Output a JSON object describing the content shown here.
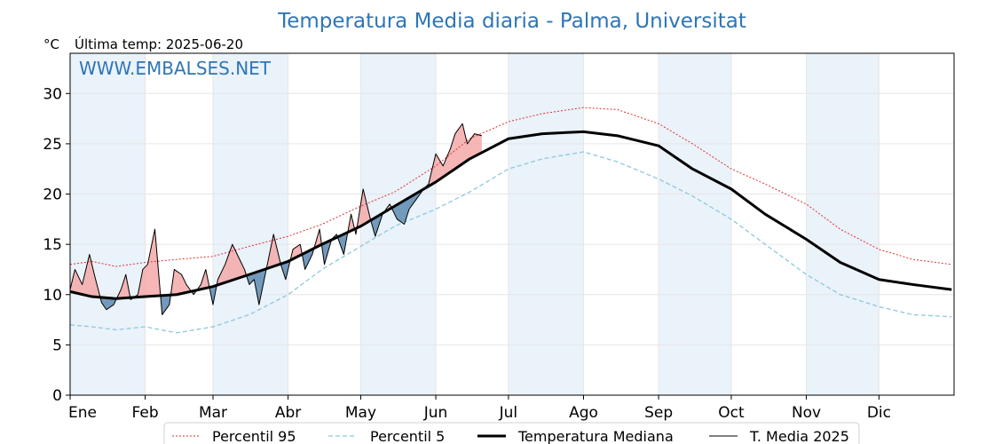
{
  "header": {
    "title": "Temperatura Media diaria - Palma, Universitat",
    "unit": "°C",
    "last_temp": "Última temp: 2025-06-20",
    "watermark": "WWW.EMBALSES.NET"
  },
  "colors": {
    "title": "#2e75b6",
    "p95": "#e03030",
    "p5": "#8ec8dc",
    "median": "#000000",
    "media2025": "#000000",
    "above_fill": "#f4a9a9",
    "below_fill": "#6c95b8",
    "band": "#eaf2fa"
  },
  "legend": [
    {
      "label": "Percentil 95",
      "style": "p95"
    },
    {
      "label": "Percentil 5",
      "style": "p5"
    },
    {
      "label": "Temperatura Mediana",
      "style": "median"
    },
    {
      "label": "T. Media 2025",
      "style": "media2025"
    }
  ],
  "chart_data": {
    "type": "line",
    "title": "Temperatura Media diaria - Palma, Universitat",
    "xlabel": "",
    "ylabel": "°C",
    "x_ticks": [
      "Ene",
      "Feb",
      "Mar",
      "Abr",
      "May",
      "Jun",
      "Jul",
      "Ago",
      "Sep",
      "Oct",
      "Nov",
      "Dic"
    ],
    "y_ticks": [
      0,
      5,
      10,
      15,
      20,
      25,
      30
    ],
    "ylim": [
      0,
      34
    ],
    "xlim": [
      1,
      366
    ],
    "grid": true,
    "legend_position": "bottom",
    "series": [
      {
        "name": "Percentil 95",
        "key": "p95",
        "x": [
          1,
          10,
          20,
          32,
          45,
          60,
          75,
          91,
          105,
          121,
          135,
          152,
          166,
          182,
          196,
          213,
          227,
          244,
          258,
          274,
          288,
          305,
          319,
          335,
          349,
          365
        ],
        "y": [
          13.0,
          13.3,
          12.8,
          13.2,
          13.5,
          13.8,
          14.8,
          15.8,
          17.0,
          18.8,
          20.2,
          22.8,
          25.5,
          27.2,
          28.0,
          28.6,
          28.4,
          27.0,
          25.0,
          22.5,
          21.0,
          19.0,
          16.5,
          14.5,
          13.5,
          13.0
        ]
      },
      {
        "name": "Percentil 5",
        "key": "p5",
        "x": [
          1,
          10,
          20,
          32,
          45,
          60,
          75,
          91,
          105,
          121,
          135,
          152,
          166,
          182,
          196,
          213,
          227,
          244,
          258,
          274,
          288,
          305,
          319,
          335,
          349,
          365
        ],
        "y": [
          7.0,
          6.8,
          6.5,
          6.8,
          6.2,
          6.8,
          8.0,
          10.0,
          12.5,
          14.8,
          16.8,
          18.5,
          20.2,
          22.5,
          23.5,
          24.2,
          23.2,
          21.5,
          19.8,
          17.5,
          15.0,
          12.0,
          10.0,
          8.8,
          8.0,
          7.8
        ]
      },
      {
        "name": "Temperatura Mediana",
        "key": "median",
        "x": [
          1,
          10,
          20,
          32,
          45,
          60,
          75,
          91,
          105,
          121,
          135,
          152,
          166,
          182,
          196,
          213,
          227,
          244,
          258,
          274,
          288,
          305,
          319,
          335,
          349,
          365
        ],
        "y": [
          10.3,
          9.8,
          9.6,
          9.8,
          10.0,
          10.8,
          12.0,
          13.3,
          15.0,
          16.8,
          18.8,
          21.2,
          23.5,
          25.5,
          26.0,
          26.2,
          25.8,
          24.8,
          22.5,
          20.5,
          18.0,
          15.5,
          13.2,
          11.5,
          11.0,
          10.5
        ]
      },
      {
        "name": "T. Media 2025",
        "key": "media2025",
        "x": [
          1,
          3,
          6,
          9,
          11,
          14,
          16,
          19,
          22,
          24,
          26,
          29,
          31,
          33,
          36,
          39,
          42,
          44,
          47,
          49,
          52,
          55,
          57,
          60,
          62,
          65,
          68,
          71,
          73,
          75,
          77,
          79,
          82,
          85,
          88,
          90,
          93,
          96,
          98,
          101,
          104,
          106,
          109,
          111,
          114,
          117,
          119,
          122,
          125,
          127,
          130,
          133,
          136,
          139,
          141,
          144,
          147,
          149,
          152,
          155,
          158,
          160,
          163,
          165,
          168,
          171
        ],
        "y": [
          10.5,
          12.5,
          11.0,
          14.0,
          12.0,
          9.2,
          8.5,
          9.0,
          10.5,
          12.0,
          9.5,
          10.0,
          12.5,
          13.0,
          16.5,
          8.0,
          9.0,
          12.5,
          12.0,
          11.0,
          10.0,
          11.0,
          12.5,
          9.0,
          11.5,
          13.0,
          15.0,
          13.5,
          12.5,
          11.0,
          11.5,
          9.0,
          12.5,
          16.0,
          13.0,
          11.5,
          14.5,
          15.0,
          12.5,
          14.0,
          16.5,
          13.0,
          15.5,
          16.0,
          14.0,
          18.0,
          16.0,
          20.5,
          17.5,
          15.8,
          18.0,
          19.0,
          17.5,
          17.0,
          18.5,
          19.5,
          20.5,
          21.0,
          24.0,
          22.8,
          24.5,
          26.0,
          27.0,
          25.0,
          26.0,
          25.8
        ]
      }
    ]
  }
}
